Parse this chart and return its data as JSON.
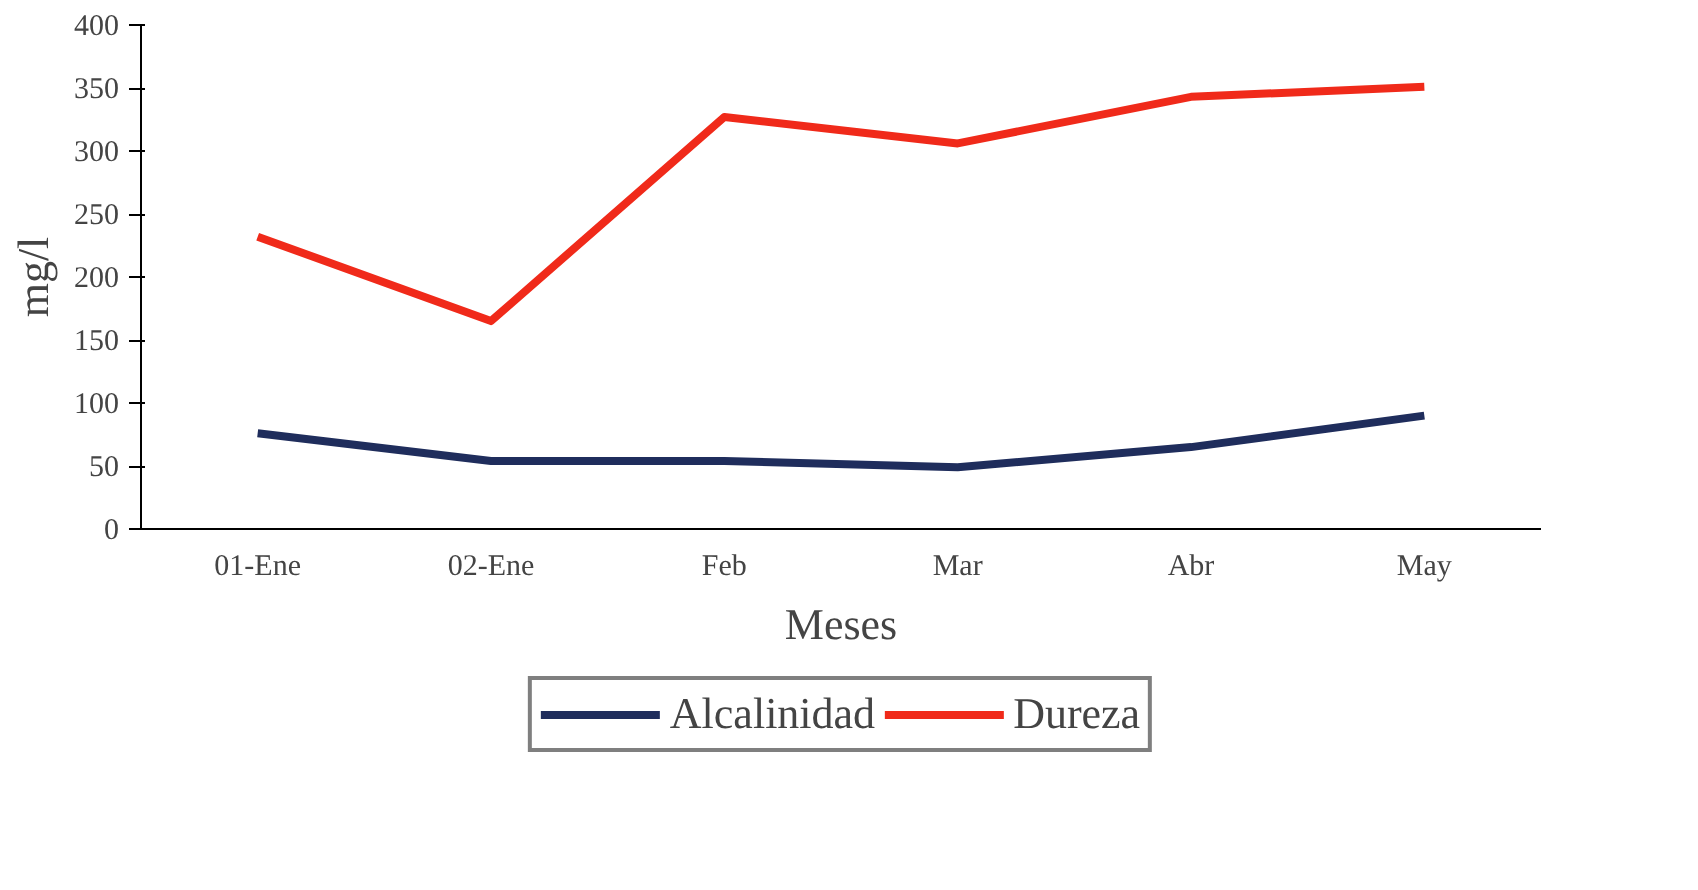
{
  "chart_data": {
    "type": "line",
    "xlabel": "Meses",
    "ylabel": "mg/l",
    "categories": [
      "01-Ene",
      "02-Ene",
      "Feb",
      "Mar",
      "Abr",
      "May"
    ],
    "series": [
      {
        "name": "Alcalinidad",
        "color": "#1f2d5c",
        "values": [
          76,
          54,
          54,
          49,
          65,
          90
        ]
      },
      {
        "name": "Dureza",
        "color": "#f02a1a",
        "values": [
          232,
          165,
          327,
          306,
          343,
          351
        ]
      }
    ],
    "ylim": [
      0,
      400
    ],
    "yticks": [
      0,
      50,
      100,
      150,
      200,
      250,
      300,
      350,
      400
    ],
    "grid": false,
    "legend": "bottom",
    "marker": "none",
    "line_style": "solid"
  }
}
